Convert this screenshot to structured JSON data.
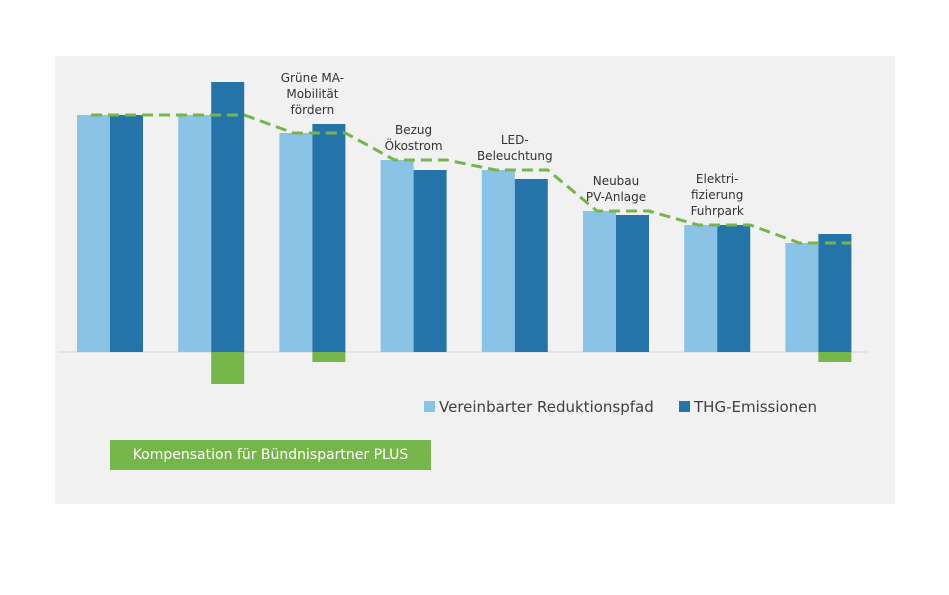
{
  "colors": {
    "panel_background": "#f1f1f1",
    "light_blue": "#8ac3e6",
    "dark_blue": "#2574a9",
    "green": "#76b54a"
  },
  "badge": {
    "label": "Kompensation für Bündnispartner PLUS"
  },
  "chart_data": {
    "type": "bar",
    "categories": [
      "",
      "",
      "",
      "",
      "",
      "",
      "",
      ""
    ],
    "annotations": [
      [],
      [],
      [
        "Grüne MA-",
        "Mobilität",
        "fördern"
      ],
      [
        "Bezug",
        "Ökostrom"
      ],
      [
        "LED-",
        "Beleuchtung"
      ],
      [
        "Neubau",
        "PV-Anlage"
      ],
      [
        "Elektri-",
        "fizierung",
        "Fuhrpark"
      ],
      []
    ],
    "series": [
      {
        "name": "Vereinbarter Reduktionspfad",
        "type": "bar",
        "color": "#8ac3e6",
        "values": [
          237,
          237,
          219,
          192,
          182,
          141,
          127,
          109
        ]
      },
      {
        "name": "THG-Emissionen",
        "type": "bar",
        "color": "#2574a9",
        "values": [
          237,
          270,
          228,
          182,
          173,
          137,
          127,
          118
        ]
      }
    ],
    "path_line": {
      "style": "dashed",
      "color": "#76b54a",
      "values": [
        237,
        237,
        219,
        192,
        182,
        141,
        127,
        109
      ]
    },
    "compensation": {
      "color": "#76b54a",
      "values": [
        0,
        32,
        10,
        0,
        0,
        0,
        0,
        10
      ]
    },
    "ylim": [
      -40,
      300
    ],
    "grid": false,
    "legend": {
      "position": "bottom-right",
      "entries": [
        "Vereinbarter Reduktionspfad",
        "THG-Emissionen"
      ]
    },
    "title": "",
    "xlabel": "",
    "ylabel": ""
  }
}
